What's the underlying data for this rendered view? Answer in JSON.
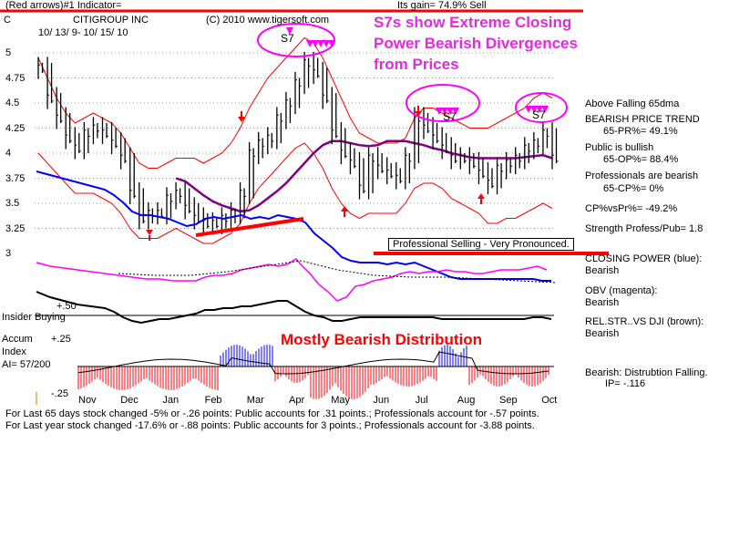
{
  "header": {
    "indicator_label": "(Red arrows)#1 Indicator=",
    "gain_label": "Its gain= 74.9% Sell",
    "ticker": "C",
    "company": "CITIGROUP INC",
    "copyright": "(C) 2010 www.tigersoft.com",
    "date_range": "10/ 13/ 9- 10/ 15/ 10"
  },
  "headline": {
    "line1": "S7s show Extreme Closing",
    "line2": "Power Bearish Divergences",
    "line3": "from Prices"
  },
  "annotations": {
    "s7_labels": [
      "S7",
      "S7",
      "S7"
    ],
    "professional_selling": "Professional Selling - Very Pronounced.",
    "distribution": "Mostly Bearish Distribution"
  },
  "right_panel": {
    "lines": [
      "Above Falling 65dma",
      "BEARISH PRICE TREND",
      "65-PR%= 49.1%",
      "Public is bullish",
      "65-OP%= 88.4%",
      "Professionals are bearish",
      "65-CP%= 0%",
      "CP%vsPr%= -49.2%",
      "Strength Profess/Pub= 1.8",
      "CLOSING POWER (blue):",
      "Bearish",
      "OBV (magenta):",
      "Bearish",
      "REL.STR..VS DJI (brown):",
      "Bearish",
      "Bearish: Distrubtion Falling.",
      "IP= -.116"
    ]
  },
  "left_panel": {
    "insider": "Insider Buying",
    "plus50": "+.50",
    "accum1": "Accum",
    "accum2": "Index",
    "ai": "AI= 57/200",
    "plus25": "+.25",
    "minus25": "-.25"
  },
  "footer": {
    "line1": "For Last 65 days stock changed -5% or -.26 points:  Public accounts for  .31 points.;  Professionals account for -.57 points.",
    "line2": "For Last year stock changed -17.6% or -.88 points:  Public accounts for  3 points.;  Professionals account for -3.88 points."
  },
  "colors": {
    "price": "#000000",
    "bands": "#ff0000",
    "ma65": "#800080",
    "closing_power": "#0000ff",
    "obv": "#ff00ff",
    "rel_strength": "#000000",
    "accum_positive": "#0000ff",
    "accum_negative": "#ff0000",
    "highlight_circle": "#ff00ff"
  },
  "chart_data": {
    "type": "line",
    "ylim": [
      3,
      5
    ],
    "yticks": [
      "5",
      "4.75",
      "4.5",
      "4.25",
      "4",
      "3.75",
      "3.5",
      "3.25",
      "3"
    ],
    "ytick_values": [
      5,
      4.75,
      4.5,
      4.25,
      4,
      3.75,
      3.5,
      3.25,
      3
    ],
    "months": [
      "Nov",
      "Dec",
      "Jan",
      "Feb",
      "Mar",
      "Apr",
      "May",
      "Jun",
      "Jul",
      "Aug",
      "Sep",
      "Oct"
    ],
    "series": [
      {
        "key": "price",
        "values": [
          4.85,
          4.55,
          4.35,
          4.15,
          4.05,
          4.2,
          4.25,
          4.2,
          4.1,
          3.95,
          3.6,
          3.35,
          3.4,
          3.4,
          3.55,
          3.6,
          3.45,
          3.35,
          3.3,
          3.3,
          3.35,
          3.4,
          3.6,
          4.0,
          4.1,
          4.15,
          4.35,
          4.5,
          4.7,
          4.9,
          4.8,
          4.55,
          4.2,
          4.0,
          3.9,
          3.65,
          3.95,
          3.85,
          3.8,
          3.75,
          3.95,
          4.35,
          4.25,
          4.15,
          4.05,
          3.95,
          3.95,
          3.9,
          3.8,
          3.7,
          3.85,
          3.9,
          3.95,
          4.05,
          4.1,
          4.2,
          3.95
        ]
      },
      {
        "key": "upper_band",
        "values": [
          4.95,
          4.75,
          4.55,
          4.4,
          4.3,
          4.35,
          4.4,
          4.35,
          4.3,
          4.2,
          4.05,
          3.9,
          3.85,
          3.85,
          3.9,
          3.95,
          3.95,
          3.95,
          3.9,
          3.95,
          4.0,
          4.1,
          4.25,
          4.45,
          4.6,
          4.75,
          4.85,
          4.95,
          5.05,
          5.15,
          5.1,
          4.95,
          4.75,
          4.55,
          4.35,
          4.2,
          4.15,
          4.1,
          4.1,
          4.1,
          4.15,
          4.35,
          4.45,
          4.45,
          4.4,
          4.35,
          4.3,
          4.25,
          4.25,
          4.25,
          4.3,
          4.35,
          4.4,
          4.45,
          4.55,
          4.6,
          4.55
        ]
      },
      {
        "key": "lower_band",
        "values": [
          4.0,
          3.9,
          3.8,
          3.7,
          3.6,
          3.6,
          3.6,
          3.55,
          3.5,
          3.4,
          3.25,
          3.15,
          3.15,
          3.15,
          3.2,
          3.25,
          3.2,
          3.15,
          3.1,
          3.1,
          3.15,
          3.2,
          3.3,
          3.5,
          3.65,
          3.75,
          3.85,
          3.95,
          4.05,
          4.1,
          4.0,
          3.85,
          3.65,
          3.5,
          3.4,
          3.35,
          3.4,
          3.4,
          3.4,
          3.4,
          3.5,
          3.65,
          3.7,
          3.7,
          3.65,
          3.55,
          3.5,
          3.45,
          3.4,
          3.3,
          3.3,
          3.35,
          3.35,
          3.4,
          3.45,
          3.5,
          3.45
        ]
      },
      {
        "key": "ma65",
        "values": [
          null,
          null,
          null,
          null,
          null,
          null,
          null,
          null,
          null,
          null,
          null,
          null,
          null,
          null,
          null,
          3.75,
          3.72,
          3.65,
          3.58,
          3.52,
          3.48,
          3.45,
          3.42,
          3.43,
          3.48,
          3.55,
          3.62,
          3.7,
          3.8,
          3.9,
          4.0,
          4.08,
          4.12,
          4.12,
          4.1,
          4.08,
          4.07,
          4.08,
          4.12,
          4.12,
          4.12,
          4.1,
          4.08,
          4.05,
          4.03,
          4.0,
          3.98,
          3.96,
          3.95,
          3.95,
          3.95,
          3.95,
          3.95,
          3.96,
          3.97,
          3.98,
          3.95
        ]
      }
    ]
  }
}
